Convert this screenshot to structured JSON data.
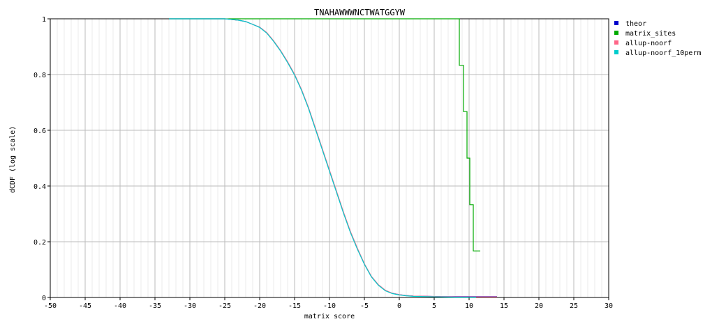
{
  "chart_data": {
    "type": "line",
    "title": "TNAHAWWWNCTWATGGYW",
    "xlabel": "matrix score",
    "ylabel": "dCDF (log scale)",
    "xlim": [
      -50,
      30
    ],
    "ylim": [
      0,
      1
    ],
    "x_ticks": [
      "-50",
      "-45",
      "-40",
      "-35",
      "-30",
      "-25",
      "-20",
      "-15",
      "-10",
      "-5",
      "0",
      "5",
      "10",
      "15",
      "20",
      "25",
      "30"
    ],
    "y_ticks": [
      "0",
      "0.2",
      "0.4",
      "0.6",
      "0.8",
      "1"
    ],
    "grid": true,
    "legend_position": "top-right",
    "series": [
      {
        "name": "theor",
        "color": "#0000cc",
        "x": [
          -33,
          -25,
          -23,
          -22,
          -21,
          -20,
          -19,
          -18,
          -17,
          -16,
          -15,
          -14,
          -13,
          -12,
          -11,
          -10,
          -9,
          -8,
          -7,
          -6,
          -5,
          -4,
          -3,
          -2,
          -1,
          0,
          1,
          2,
          4,
          6,
          8,
          10,
          12,
          14
        ],
        "y": [
          1.0,
          1.0,
          0.995,
          0.99,
          0.98,
          0.97,
          0.95,
          0.92,
          0.885,
          0.845,
          0.8,
          0.745,
          0.68,
          0.605,
          0.53,
          0.455,
          0.38,
          0.305,
          0.235,
          0.175,
          0.12,
          0.075,
          0.045,
          0.025,
          0.015,
          0.01,
          0.007,
          0.005,
          0.004,
          0.003,
          0.003,
          0.003,
          0.003,
          0.003
        ]
      },
      {
        "name": "matrix_sites",
        "color": "#00aa00",
        "step": true,
        "x": [
          -33,
          8.6,
          9.2,
          9.7,
          10.1,
          10.6,
          11.6
        ],
        "y": [
          1.0,
          0.833,
          0.667,
          0.5,
          0.333,
          0.167,
          0.167
        ]
      },
      {
        "name": "allup-noorf",
        "color": "#ff6688",
        "x": [
          -33,
          -25,
          -23,
          -22,
          -21,
          -20,
          -19,
          -18,
          -17,
          -16,
          -15,
          -14,
          -13,
          -12,
          -11,
          -10,
          -9,
          -8,
          -7,
          -6,
          -5,
          -4,
          -3,
          -2,
          -1,
          0,
          1,
          2,
          4,
          6,
          8,
          10,
          12,
          14
        ],
        "y": [
          1.0,
          1.0,
          0.995,
          0.99,
          0.98,
          0.97,
          0.951,
          0.921,
          0.886,
          0.846,
          0.801,
          0.746,
          0.681,
          0.607,
          0.532,
          0.457,
          0.382,
          0.307,
          0.237,
          0.177,
          0.121,
          0.076,
          0.046,
          0.026,
          0.015,
          0.01,
          0.007,
          0.005,
          0.004,
          0.003,
          0.002,
          0.002,
          0.002,
          0.002
        ]
      },
      {
        "name": "allup-noorf_10perm",
        "color": "#00cccc",
        "x": [
          -33,
          -25,
          -23,
          -22,
          -21,
          -20,
          -19,
          -18,
          -17,
          -16,
          -15,
          -14,
          -13,
          -12,
          -11,
          -10,
          -9,
          -8,
          -7,
          -6,
          -5,
          -4,
          -3,
          -2,
          -1,
          0,
          1,
          2,
          4,
          6,
          8,
          10,
          11
        ],
        "y": [
          1.0,
          1.0,
          0.995,
          0.99,
          0.98,
          0.969,
          0.949,
          0.919,
          0.884,
          0.843,
          0.798,
          0.743,
          0.678,
          0.603,
          0.528,
          0.453,
          0.378,
          0.303,
          0.233,
          0.173,
          0.119,
          0.074,
          0.044,
          0.024,
          0.014,
          0.009,
          0.006,
          0.004,
          0.003,
          0.002,
          0.001,
          0.001,
          0.001
        ]
      }
    ]
  }
}
